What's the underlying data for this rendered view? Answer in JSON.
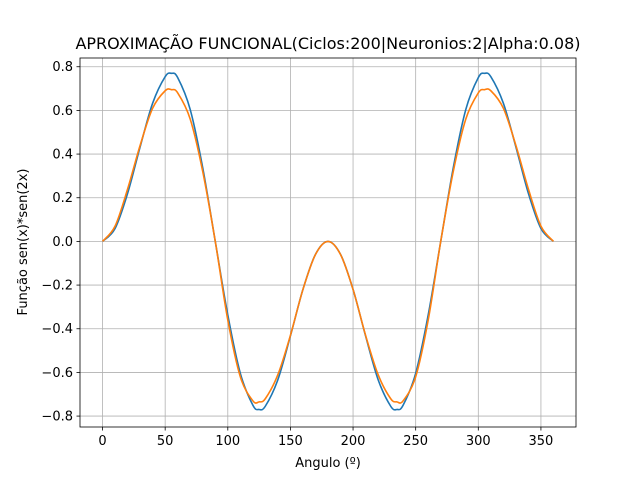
{
  "chart_data": {
    "type": "line",
    "title": "APROXIMAÇÃO FUNCIONAL(Ciclos:200|Neuronios:2|Alpha:0.08)",
    "xlabel": "Angulo (º)",
    "ylabel": "Função sen(x)*sen(2x)",
    "xlim": [
      -18,
      378
    ],
    "ylim": [
      -0.85,
      0.84
    ],
    "xticks": [
      0,
      50,
      100,
      150,
      200,
      250,
      300,
      350
    ],
    "xtick_labels": [
      "0",
      "50",
      "100",
      "150",
      "200",
      "250",
      "300",
      "350"
    ],
    "yticks": [
      -0.8,
      -0.6,
      -0.4,
      -0.2,
      0.0,
      0.2,
      0.4,
      0.6,
      0.8
    ],
    "ytick_labels": [
      "−0.8",
      "−0.6",
      "−0.4",
      "−0.2",
      "0.0",
      "0.2",
      "0.4",
      "0.6",
      "0.8"
    ],
    "grid": true,
    "x": [
      0,
      10,
      20,
      30,
      40,
      50,
      55,
      60,
      70,
      80,
      90,
      100,
      110,
      120,
      125,
      130,
      140,
      150,
      160,
      170,
      180,
      190,
      200,
      210,
      220,
      230,
      235,
      240,
      250,
      260,
      270,
      280,
      290,
      300,
      305,
      310,
      320,
      330,
      340,
      350,
      360
    ],
    "series": [
      {
        "color": "#1f77b4",
        "values": [
          0.0,
          0.0593,
          0.2198,
          0.433,
          0.633,
          0.7544,
          0.7698,
          0.75,
          0.604,
          0.3368,
          0.0,
          -0.3368,
          -0.604,
          -0.75,
          -0.7698,
          -0.7544,
          -0.633,
          -0.433,
          -0.2198,
          -0.0593,
          0.0,
          -0.0593,
          -0.2198,
          -0.433,
          -0.633,
          -0.7544,
          -0.7698,
          -0.75,
          -0.604,
          -0.3368,
          0.0,
          0.3368,
          0.604,
          0.75,
          0.7698,
          0.7544,
          0.633,
          0.433,
          0.2198,
          0.0593,
          0.0
        ]
      },
      {
        "color": "#ff7f0e",
        "values": [
          0.0,
          0.07,
          0.24,
          0.44,
          0.61,
          0.69,
          0.695,
          0.68,
          0.56,
          0.32,
          0.0,
          -0.36,
          -0.62,
          -0.73,
          -0.735,
          -0.72,
          -0.61,
          -0.43,
          -0.22,
          -0.06,
          0.0,
          -0.06,
          -0.22,
          -0.43,
          -0.61,
          -0.72,
          -0.735,
          -0.73,
          -0.62,
          -0.36,
          0.0,
          0.32,
          0.56,
          0.68,
          0.695,
          0.69,
          0.61,
          0.44,
          0.24,
          0.07,
          0.0
        ]
      }
    ]
  }
}
